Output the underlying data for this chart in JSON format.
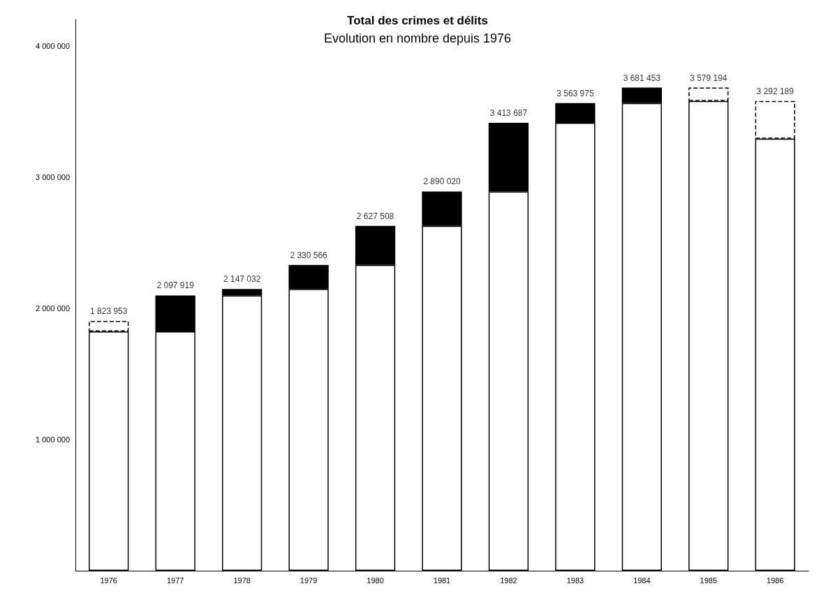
{
  "chart_data": {
    "type": "bar",
    "title": "Total des crimes et délits",
    "subtitle": "Evolution en nombre depuis 1976",
    "categories": [
      "1976",
      "1977",
      "1978",
      "1979",
      "1980",
      "1981",
      "1982",
      "1983",
      "1984",
      "1985",
      "1986"
    ],
    "stacked": true,
    "series": [
      {
        "color": "#ffffff",
        "line_style": "solid",
        "values": [
          1823953,
          1823953,
          2097919,
          2147032,
          2330566,
          2627508,
          2890020,
          3413687,
          3563975,
          3579194,
          3292189
        ]
      },
      {
        "color": "#000000",
        "line_style": "solid",
        "values": [
          null,
          273966,
          49113,
          183534,
          296942,
          262512,
          523667,
          150288,
          117478,
          null,
          null
        ]
      },
      {
        "color": "#ffffff",
        "line_style": "dashed",
        "values": [
          80000,
          null,
          null,
          null,
          null,
          null,
          null,
          null,
          null,
          102259,
          287005
        ]
      }
    ],
    "annotations": [
      {
        "text": "1 823 953",
        "x": "1976",
        "y": 1903953
      },
      {
        "text": "2 097 919",
        "x": "1977",
        "y": 2097919
      },
      {
        "text": "2 147 032",
        "x": "1978",
        "y": 2147032
      },
      {
        "text": "2 330 566",
        "x": "1979",
        "y": 2330566
      },
      {
        "text": "2 627 508",
        "x": "1980",
        "y": 2627508
      },
      {
        "text": "2 890 020",
        "x": "1981",
        "y": 2890020
      },
      {
        "text": "3 413 687",
        "x": "1982",
        "y": 3413687
      },
      {
        "text": "3 563 975",
        "x": "1983",
        "y": 3563975
      },
      {
        "text": "3 681 453",
        "x": "1984",
        "y": 3681453
      },
      {
        "text": "3 579 194",
        "x": "1985",
        "y": 3681453
      },
      {
        "text": "3 292 189",
        "x": "1986",
        "y": 3579194
      }
    ],
    "ylim": [
      0,
      4200000
    ],
    "yticks": [
      {
        "value": 1000000,
        "label": "1 000 000"
      },
      {
        "value": 2000000,
        "label": "2 000 000"
      },
      {
        "value": 3000000,
        "label": "3 000 000"
      },
      {
        "value": 4000000,
        "label": "4 000 000"
      }
    ],
    "grid": false
  }
}
